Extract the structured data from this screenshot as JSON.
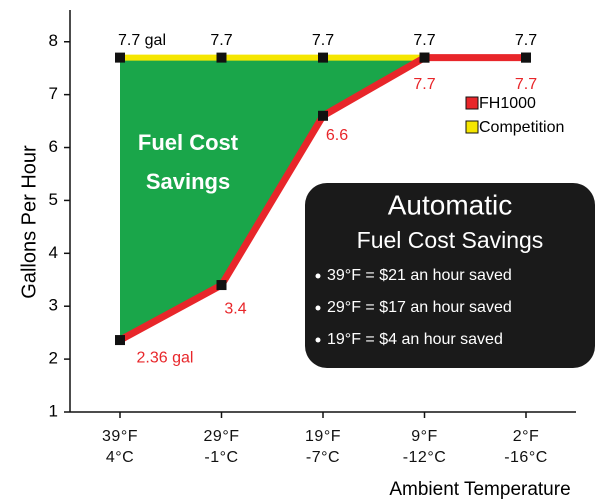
{
  "chart_data": {
    "type": "line",
    "x_label": "Ambient Temperature",
    "y_label": "Gallons Per Hour",
    "categories": [
      "39°F\n4°C",
      "29°F\n-1°C",
      "19°F\n-7°C",
      "9°F\n-12°C",
      "2°F\n-16°C"
    ],
    "series": [
      {
        "name": "FH1000",
        "color": "#e8262a",
        "values": [
          2.36,
          3.4,
          6.6,
          7.7,
          7.7
        ],
        "value_labels": [
          "2.36 gal",
          "3.4",
          "6.6",
          "7.7",
          "7.7"
        ]
      },
      {
        "name": "Competition",
        "color": "#f5e600",
        "values": [
          7.7,
          7.7,
          7.7,
          7.7,
          7.7
        ],
        "value_labels": [
          "7.7 gal",
          "7.7",
          "7.7",
          "7.7",
          "7.7"
        ]
      }
    ],
    "area_color": "#1aa64a",
    "area_label": [
      "Fuel Cost",
      "Savings"
    ],
    "ylim": [
      1,
      8.6
    ],
    "yticks": [
      1,
      2,
      3,
      4,
      5,
      6,
      7,
      8
    ],
    "callout": {
      "title": "Automatic",
      "subtitle": "Fuel Cost Savings",
      "items": [
        "39°F = $21 an hour saved",
        "29°F = $17 an hour saved",
        "19°F = $4 an hour saved"
      ]
    }
  }
}
